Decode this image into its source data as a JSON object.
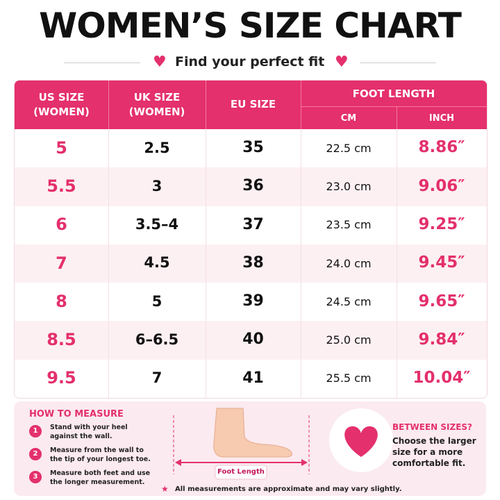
{
  "header": {
    "title": "WOMEN’S SIZE CHART",
    "subtitle": "Find your perfect fit"
  },
  "table": {
    "columns": [
      [
        "US SIZE",
        "(WOMEN)"
      ],
      [
        "UK SIZE",
        "(WOMEN)"
      ],
      [
        "EU SIZE"
      ]
    ],
    "group": {
      "title": "FOOT LENGTH",
      "columns": [
        "CM",
        "INCH"
      ]
    },
    "rows": [
      [
        "5",
        "2.5",
        "35",
        "22.5 cm",
        "8.86″"
      ],
      [
        "5.5",
        "3",
        "36",
        "23.0 cm",
        "9.06″"
      ],
      [
        "6",
        "3.5–4",
        "37",
        "23.5 cm",
        "9.25″"
      ],
      [
        "7",
        "4.5",
        "38",
        "24.0 cm",
        "9.45″"
      ],
      [
        "8",
        "5",
        "39",
        "24.5 cm",
        "9.65″"
      ],
      [
        "8.5",
        "6–6.5",
        "40",
        "25.0 cm",
        "9.84″"
      ],
      [
        "9.5",
        "7",
        "41",
        "25.5 cm",
        "10.04″"
      ]
    ]
  },
  "how_to_measure": {
    "title": "HOW TO MEASURE",
    "steps": [
      {
        "number": "1",
        "lines": [
          "Stand with your heel",
          "against the wall."
        ]
      },
      {
        "number": "2",
        "lines": [
          "Measure from the wall to",
          "the tip of your longest toe."
        ]
      },
      {
        "number": "3",
        "lines": [
          "Measure both feet and use",
          "the longer measurement."
        ]
      }
    ]
  },
  "illustration": {
    "label": "Foot Length"
  },
  "between_sizes": {
    "title": "BETWEEN SIZES?",
    "lines": [
      "Choose the larger",
      "size for a more",
      "comfortable fit."
    ]
  },
  "note": "All measurements are approximate and may vary slightly."
}
